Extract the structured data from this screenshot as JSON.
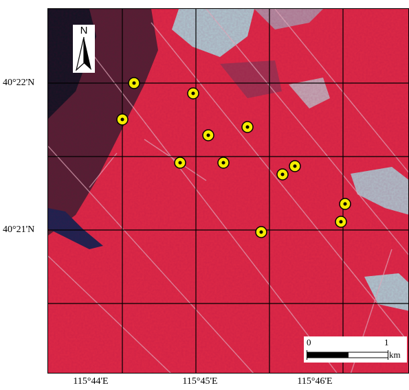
{
  "map": {
    "lat_labels": [
      "40°22'N",
      "40°21'N"
    ],
    "lon_labels": [
      "115°44'E",
      "115°45'E",
      "115°46'E"
    ],
    "north_label": "N",
    "scale": {
      "zero": "0",
      "one": "1",
      "unit": "km"
    },
    "point_count": 12,
    "colors": {
      "vegetation": "#e22a48",
      "bare_soil": "#a8dbe0",
      "water": "#1a2450",
      "grid": "#000000",
      "marker_fill": "#f5ec00",
      "marker_center": "#000000"
    },
    "icons": [
      "north-arrow-icon",
      "scale-bar-icon",
      "sample-point-marker"
    ]
  }
}
